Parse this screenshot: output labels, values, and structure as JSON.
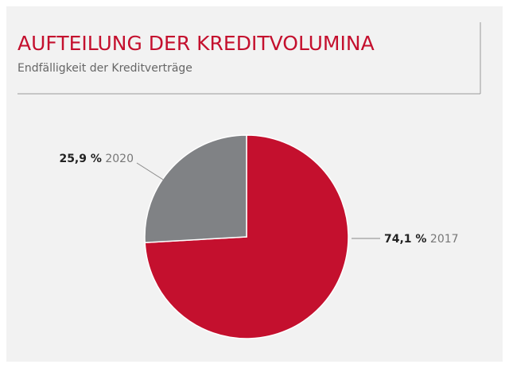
{
  "chart_data": {
    "type": "pie",
    "title": "AUFTEILUNG DER KREDITVOLUMINA",
    "subtitle": "Endfälligkeit der Kreditverträge",
    "categories": [
      "2017",
      "2020"
    ],
    "values": [
      74.1,
      25.9
    ],
    "value_labels": [
      "74,1 %",
      "25,9 %"
    ],
    "colors": [
      "#c4102e",
      "#808285"
    ]
  }
}
